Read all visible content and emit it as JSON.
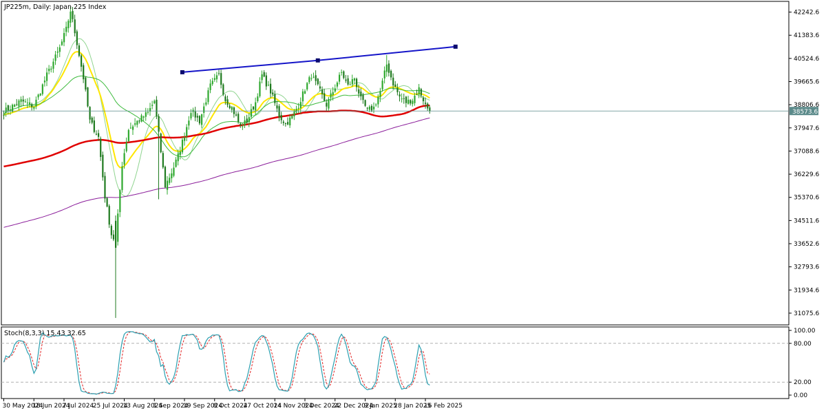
{
  "header": {
    "symbol_text": "JP225m, Daily:  Japan 225 Index",
    "stoch_text": "Stoch(8,3,3) 15.43 32.65"
  },
  "colors": {
    "bull": "#2ea82e",
    "bear": "#1e7a1e",
    "sma_fast": "#8fd48f",
    "ema_yellow": "#ffe600",
    "sma_green": "#3cba3c",
    "sma200_red": "#e00000",
    "sma_purple": "#8a1c9a",
    "trendline": "#1414c8",
    "stoch_main": "#2a9fb0",
    "stoch_signal": "#e02020",
    "current_price_line": "#5b8a8a"
  },
  "chart_data": [
    {
      "type": "candlestick",
      "title": "JP225m, Daily:  Japan 225 Index",
      "y_ticks": [
        "42242.6",
        "41383.6",
        "40524.6",
        "39665.6",
        "38806.6",
        "37947.6",
        "37088.6",
        "36229.6",
        "35370.6",
        "34511.6",
        "33652.6",
        "32793.6",
        "31934.6",
        "31075.6"
      ],
      "ylim": [
        30640,
        42640
      ],
      "current_price": "38573.6",
      "x_ticks": [
        "30 May 2024",
        "18 Jun 2024",
        "7 Jul 2024",
        "25 Jul 2024",
        "13 Aug 2024",
        "1 Sep 2024",
        "19 Sep 2024",
        "8 Oct 2024",
        "27 Oct 2024",
        "14 Nov 2024",
        "3 Dec 2024",
        "22 Dec 2024",
        "9 Jan 2025",
        "28 Jan 2025",
        "16 Feb 2025"
      ],
      "x_tick_index": [
        0,
        14,
        28,
        42,
        56,
        70,
        84,
        98,
        112,
        126,
        140,
        154,
        168,
        182,
        196
      ],
      "close_anchors": [
        [
          0,
          38550
        ],
        [
          8,
          38950
        ],
        [
          14,
          38750
        ],
        [
          20,
          39900
        ],
        [
          26,
          40900
        ],
        [
          29,
          41600
        ],
        [
          31,
          42300
        ],
        [
          34,
          41100
        ],
        [
          37,
          39800
        ],
        [
          40,
          38200
        ],
        [
          44,
          37600
        ],
        [
          47,
          35400
        ],
        [
          50,
          34000
        ],
        [
          52,
          33700
        ],
        [
          55,
          36600
        ],
        [
          58,
          37900
        ],
        [
          63,
          38250
        ],
        [
          67,
          38500
        ],
        [
          70,
          38950
        ],
        [
          72,
          37700
        ],
        [
          75,
          35800
        ],
        [
          78,
          36300
        ],
        [
          81,
          36900
        ],
        [
          84,
          37700
        ],
        [
          87,
          38600
        ],
        [
          91,
          38200
        ],
        [
          96,
          39500
        ],
        [
          100,
          39900
        ],
        [
          103,
          39000
        ],
        [
          106,
          38700
        ],
        [
          110,
          38000
        ],
        [
          113,
          38200
        ],
        [
          117,
          38900
        ],
        [
          120,
          39900
        ],
        [
          124,
          39300
        ],
        [
          128,
          38400
        ],
        [
          131,
          38100
        ],
        [
          134,
          38350
        ],
        [
          137,
          38800
        ],
        [
          140,
          39400
        ],
        [
          143,
          39900
        ],
        [
          147,
          39300
        ],
        [
          150,
          38800
        ],
        [
          153,
          39300
        ],
        [
          157,
          40000
        ],
        [
          160,
          39500
        ],
        [
          163,
          39800
        ],
        [
          166,
          39000
        ],
        [
          169,
          38600
        ],
        [
          172,
          38700
        ],
        [
          175,
          39300
        ],
        [
          178,
          40300
        ],
        [
          181,
          39600
        ],
        [
          184,
          39100
        ],
        [
          187,
          38900
        ],
        [
          190,
          39000
        ],
        [
          193,
          39400
        ],
        [
          196,
          38800
        ],
        [
          198,
          38573
        ]
      ],
      "trendline": {
        "points": [
          [
            83,
            40012
          ],
          [
            146,
            40450
          ],
          [
            210,
            40960
          ]
        ]
      },
      "moving_averages": [
        {
          "key": "sma_fast",
          "kind": "SMA",
          "period": 13
        },
        {
          "key": "ema_yellow",
          "kind": "EMA",
          "period": 20
        },
        {
          "key": "sma_green",
          "kind": "SMA",
          "period": 40
        },
        {
          "key": "sma200_red",
          "kind": "SMA200",
          "start_value": 36500
        },
        {
          "key": "sma_purple",
          "kind": "SMA300",
          "start_value": 34240
        }
      ]
    },
    {
      "type": "line",
      "title": "Stoch(8,3,3) 15.43 32.65",
      "y_ticks": [
        "100.00",
        "80.00",
        "20.00",
        "0.00"
      ],
      "levels": [
        80,
        20
      ],
      "ylim": [
        0,
        100
      ],
      "main_last": 15.43,
      "signal_last": 32.65
    }
  ]
}
